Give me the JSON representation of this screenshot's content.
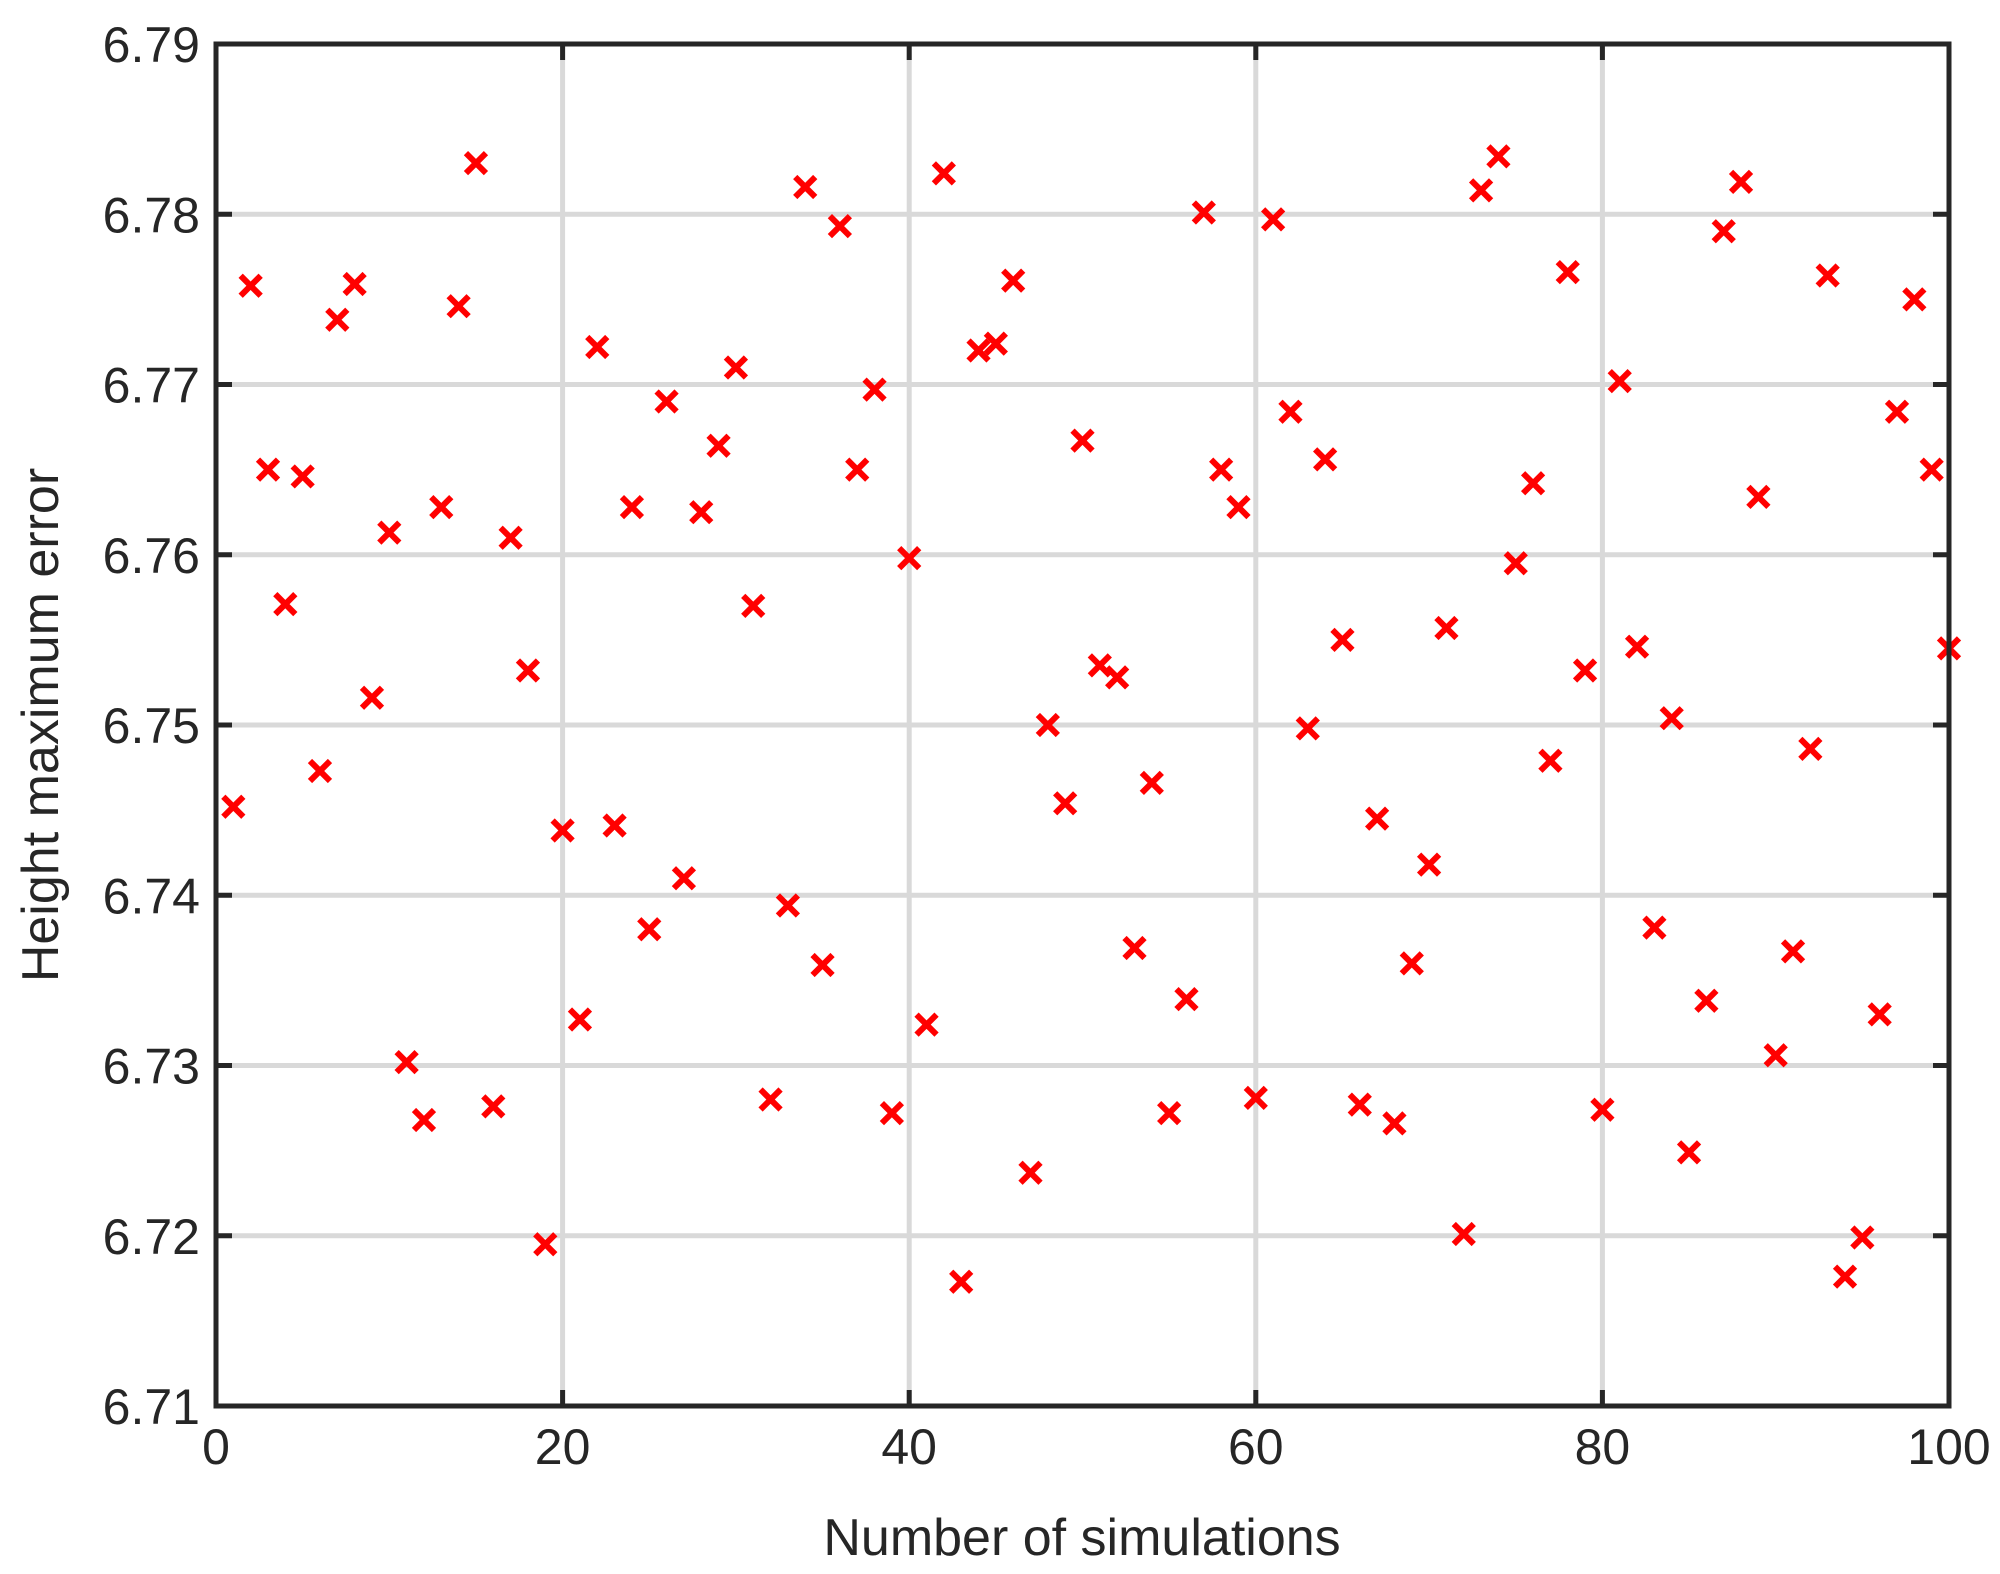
{
  "chart_data": {
    "type": "scatter",
    "title": "",
    "xlabel": "Number of simulations",
    "ylabel": "Height maximum error",
    "xlim": [
      0,
      100
    ],
    "ylim": [
      6.71,
      6.79
    ],
    "xticks": [
      0,
      20,
      40,
      60,
      80,
      100
    ],
    "yticks": [
      6.71,
      6.72,
      6.73,
      6.74,
      6.75,
      6.76,
      6.77,
      6.78,
      6.79
    ],
    "xtick_labels": [
      "0",
      "20",
      "40",
      "60",
      "80",
      "100"
    ],
    "ytick_labels": [
      "6.71",
      "6.72",
      "6.73",
      "6.74",
      "6.75",
      "6.76",
      "6.77",
      "6.78",
      "6.79"
    ],
    "grid": true,
    "marker": "x",
    "marker_color": "#ff0000",
    "series": [
      {
        "x": [
          1,
          2,
          3,
          4,
          5,
          6,
          7,
          8,
          9,
          10,
          11,
          12,
          13,
          14,
          15,
          16,
          17,
          18,
          19,
          20,
          21,
          22,
          23,
          24,
          25,
          26,
          27,
          28,
          29,
          30,
          31,
          32,
          33,
          34,
          35,
          36,
          37,
          38,
          39,
          40,
          41,
          42,
          43,
          44,
          45,
          46,
          47,
          48,
          49,
          50,
          51,
          52,
          53,
          54,
          55,
          56,
          57,
          58,
          59,
          60,
          61,
          62,
          63,
          64,
          65,
          66,
          67,
          68,
          69,
          70,
          71,
          72,
          73,
          74,
          75,
          76,
          77,
          78,
          79,
          80,
          81,
          82,
          83,
          84,
          85,
          86,
          87,
          88,
          89,
          90,
          91,
          92,
          93,
          94,
          95,
          96,
          97,
          98,
          99,
          100
        ],
        "y": [
          6.7452,
          6.7758,
          6.765,
          6.7571,
          6.7646,
          6.7473,
          6.7738,
          6.7759,
          6.7516,
          6.7613,
          6.7302,
          6.7268,
          6.7628,
          6.7746,
          6.783,
          6.7276,
          6.761,
          6.7532,
          6.7195,
          6.7438,
          6.7327,
          6.7722,
          6.7441,
          6.7628,
          6.738,
          6.769,
          6.741,
          6.7625,
          6.7664,
          6.771,
          6.757,
          6.728,
          6.7394,
          6.7816,
          6.7359,
          6.7793,
          6.765,
          6.7697,
          6.7272,
          6.7598,
          6.7324,
          6.7824,
          6.7173,
          6.772,
          6.7724,
          6.7761,
          6.7237,
          6.75,
          6.7454,
          6.7667,
          6.7535,
          6.7528,
          6.7369,
          6.7466,
          6.7272,
          6.7339,
          6.7801,
          6.765,
          6.7628,
          6.7281,
          6.7797,
          6.7684,
          6.7498,
          6.7656,
          6.755,
          6.7277,
          6.7445,
          6.7266,
          6.736,
          6.7418,
          6.7557,
          6.7201,
          6.7814,
          6.7834,
          6.7595,
          6.7642,
          6.7479,
          6.7766,
          6.7532,
          6.7274,
          6.7702,
          6.7546,
          6.7381,
          6.7504,
          6.7249,
          6.7338,
          6.779,
          6.7819,
          6.7634,
          6.7306,
          6.7367,
          6.7486,
          6.7764,
          6.7176,
          6.7199,
          6.733,
          6.7684,
          6.775,
          6.765,
          6.7545
        ]
      }
    ]
  }
}
